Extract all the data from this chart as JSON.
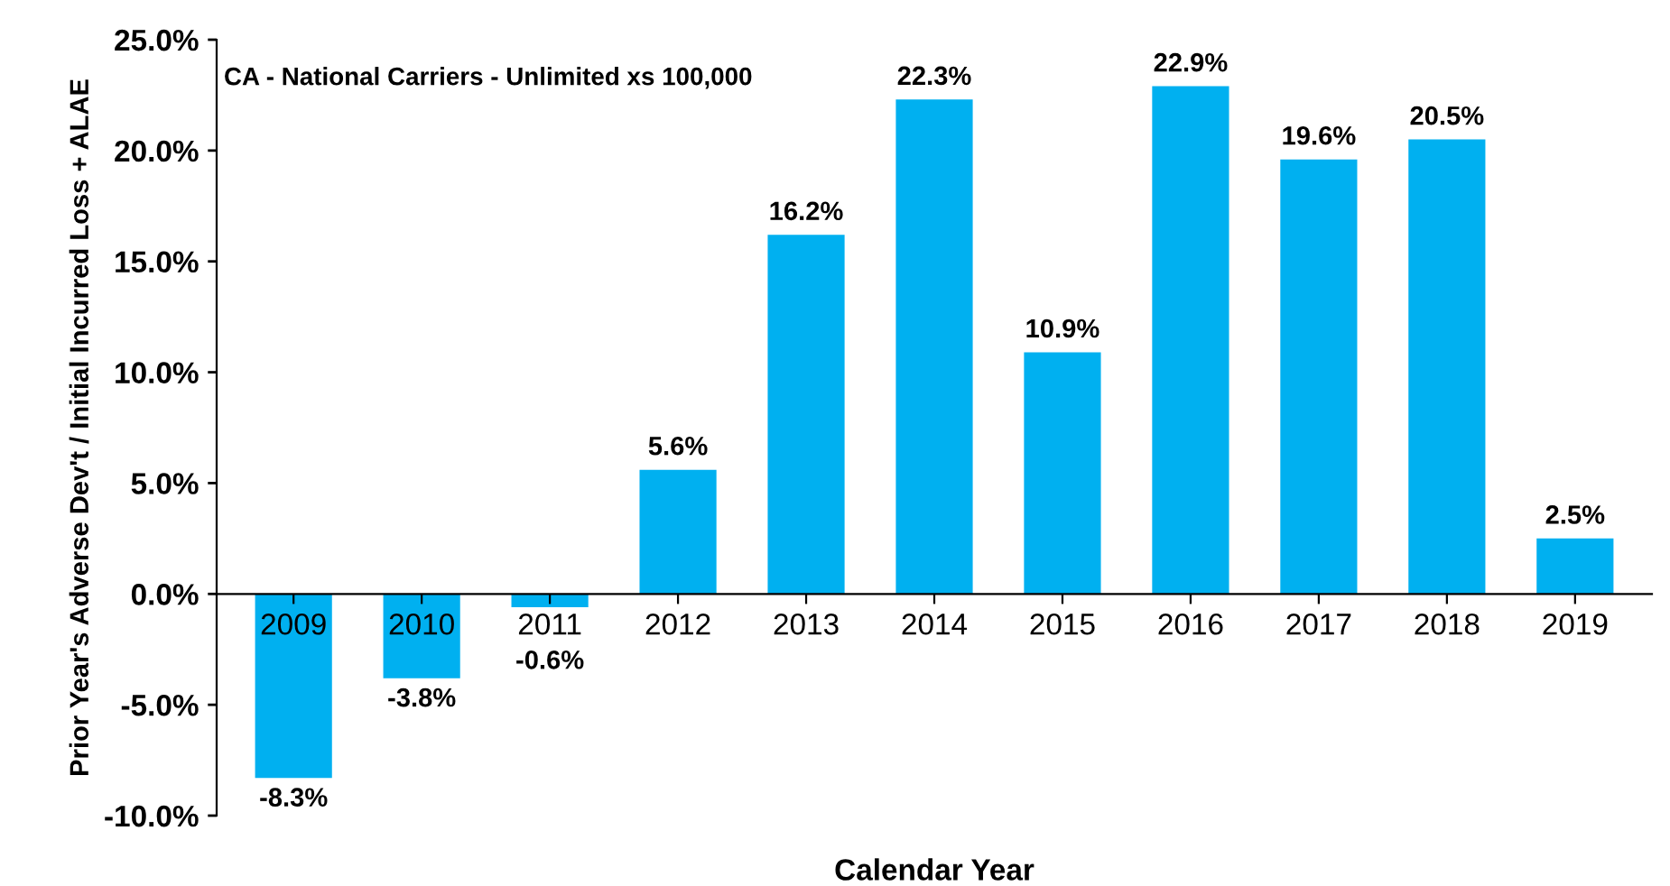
{
  "chart_data": {
    "type": "bar",
    "title": "CA - National Carriers - Unlimited xs 100,000",
    "xlabel": "Calendar Year",
    "ylabel": "Prior Year's Adverse Dev't / Initial Incurred Loss + ALAE",
    "categories": [
      "2009",
      "2010",
      "2011",
      "2012",
      "2013",
      "2014",
      "2015",
      "2016",
      "2017",
      "2018",
      "2019"
    ],
    "values": [
      -8.3,
      -3.8,
      -0.6,
      5.6,
      16.2,
      22.3,
      10.9,
      22.9,
      19.6,
      20.5,
      2.5
    ],
    "value_labels": [
      "-8.3%",
      "-3.8%",
      "-0.6%",
      "5.6%",
      "16.2%",
      "22.3%",
      "10.9%",
      "22.9%",
      "19.6%",
      "20.5%",
      "2.5%"
    ],
    "color": "#00b0f0",
    "ylim": [
      -10,
      25
    ],
    "yticks": [
      {
        "value": -10,
        "label": "-10.0%"
      },
      {
        "value": -5,
        "label": "-5.0%"
      },
      {
        "value": 0,
        "label": "0.0%"
      },
      {
        "value": 5,
        "label": "5.0%"
      },
      {
        "value": 10,
        "label": "10.0%"
      },
      {
        "value": 15,
        "label": "15.0%"
      },
      {
        "value": 20,
        "label": "20.0%"
      },
      {
        "value": 25,
        "label": "25.0%"
      }
    ],
    "grid": false,
    "legend": false
  }
}
